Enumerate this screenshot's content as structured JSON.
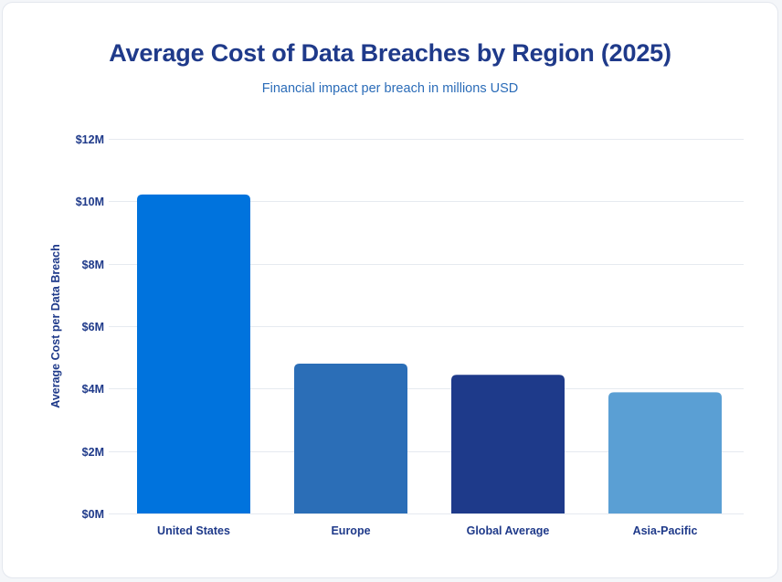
{
  "chart_data": {
    "type": "bar",
    "title": "Average Cost of Data Breaches by Region (2025)",
    "subtitle": "Financial impact per breach in millions USD",
    "xlabel": "",
    "ylabel": "Average Cost per Data Breach",
    "ylim": [
      0,
      12
    ],
    "yticks": [
      0,
      2,
      4,
      6,
      8,
      10,
      12
    ],
    "ytick_labels": [
      "$0M",
      "$2M",
      "$4M",
      "$6M",
      "$8M",
      "$10M",
      "$12M"
    ],
    "grid": true,
    "legend": "none",
    "categories": [
      "United States",
      "Europe",
      "Global Average",
      "Asia-Pacific"
    ],
    "values": [
      10.22,
      4.8,
      4.44,
      3.88
    ],
    "colors": [
      "#0073dd",
      "#2b6eb7",
      "#1e3a8a",
      "#5a9fd4"
    ]
  }
}
